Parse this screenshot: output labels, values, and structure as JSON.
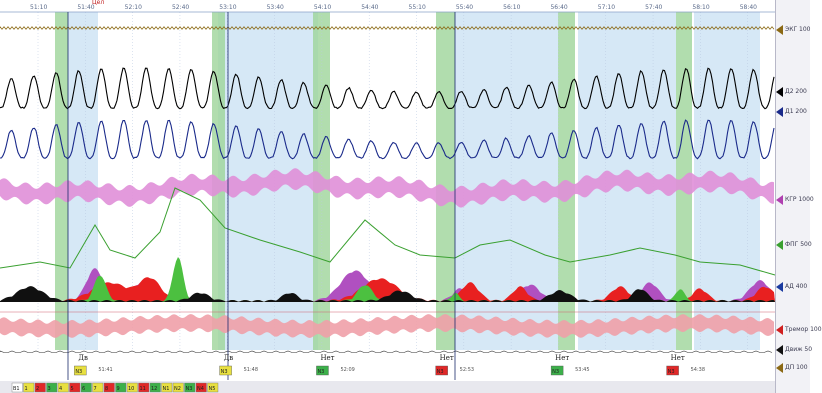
{
  "timeline": {
    "ticks": [
      "51:10",
      "51:40",
      "52:10",
      "52:40",
      "53:10",
      "53:40",
      "54:10",
      "54:40",
      "55:10",
      "55:40",
      "56:10",
      "56:40",
      "57:10",
      "57:40",
      "58:10",
      "58:40"
    ],
    "cursor_label": "Цел"
  },
  "markers": [
    {
      "label": "Дв",
      "time": "51:41",
      "tag": "N3",
      "color": "#e8e040",
      "t": 0.085
    },
    {
      "label": "Дв",
      "time": "51:48",
      "tag": "N3",
      "color": "#e8e040",
      "t": 0.28
    },
    {
      "label": "Нет",
      "time": "52:09",
      "tag": "N3",
      "color": "#3cb04a",
      "t": 0.41
    },
    {
      "label": "Нет",
      "time": "52:53",
      "tag": "N3",
      "color": "#e02828",
      "t": 0.57
    },
    {
      "label": "Нет",
      "time": "53:45",
      "tag": "N3",
      "color": "#3cb04a",
      "t": 0.725
    },
    {
      "label": "Нет",
      "time": "54:38",
      "tag": "N3",
      "color": "#e02828",
      "t": 0.88
    }
  ],
  "channels": [
    {
      "label": "ЭКГ 100",
      "color": "#8b6914"
    },
    {
      "label": "Д2 200",
      "color": "#000000"
    },
    {
      "label": "Д1 200",
      "color": "#1a2a8a"
    },
    {
      "label": "КГР 1000",
      "color": "#b040b0"
    },
    {
      "label": "ФПГ 500",
      "color": "#3aa030"
    },
    {
      "label": "АД 400",
      "color": "#1a3aa0"
    },
    {
      "label": "Тремор 100",
      "color": "#d02020"
    },
    {
      "label": "Движ 50",
      "color": "#111111"
    },
    {
      "label": "ДП 100",
      "color": "#8b6914"
    }
  ],
  "bottom_bar": [
    "В1",
    "1",
    "2",
    "3",
    "4",
    "5",
    "6",
    "7",
    "8",
    "9",
    "10",
    "11",
    "12",
    "N1",
    "N2",
    "N3",
    "N4",
    "N5"
  ],
  "colors": {
    "green_band": "#9ed49a",
    "blue_band": "#d6e8f6",
    "grid": "#b9c8e0"
  }
}
